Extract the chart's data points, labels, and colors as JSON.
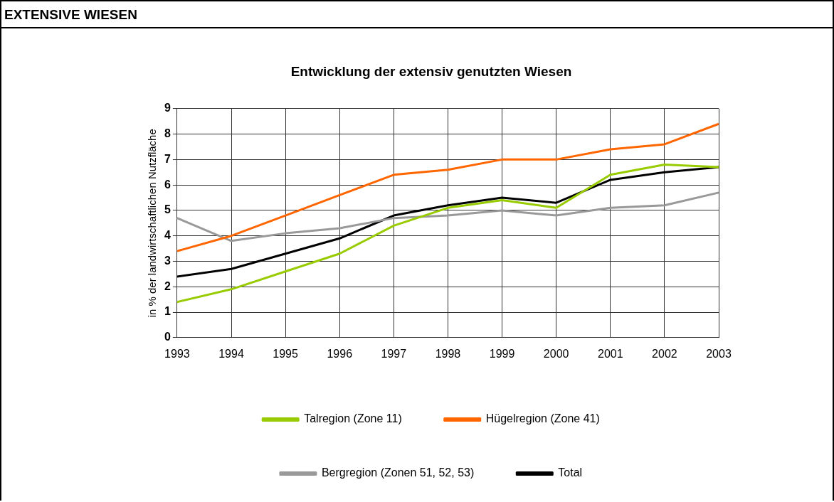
{
  "chart_data": {
    "type": "line",
    "title": "Entwicklung der extensiv genutzten Wiesen",
    "ylabel": "in % der landwirtschaftlichen Nutzfläche",
    "annotations": [
      "EXTENSIVE WIESEN"
    ],
    "categories": [
      "1993",
      "1994",
      "1995",
      "1996",
      "1997",
      "1998",
      "1999",
      "2000",
      "2001",
      "2002",
      "2003"
    ],
    "series": [
      {
        "name": "Talregion (Zone 11)",
        "color": "#99cc00",
        "values": [
          1.4,
          1.9,
          2.6,
          3.3,
          4.4,
          5.1,
          5.4,
          5.1,
          6.4,
          6.8,
          6.7
        ]
      },
      {
        "name": "Hügelregion (Zone 41)",
        "color": "#ff6600",
        "values": [
          3.4,
          4.0,
          4.8,
          5.6,
          6.4,
          6.6,
          7.0,
          7.0,
          7.4,
          7.6,
          8.4
        ]
      },
      {
        "name": "Bergregion (Zonen 51, 52, 53)",
        "color": "#999999",
        "values": [
          4.7,
          3.8,
          4.1,
          4.3,
          4.7,
          4.8,
          5.0,
          4.8,
          5.1,
          5.2,
          5.7
        ]
      },
      {
        "name": "Total",
        "color": "#000000",
        "values": [
          2.4,
          2.7,
          3.3,
          3.9,
          4.8,
          5.2,
          5.5,
          5.3,
          6.2,
          6.5,
          6.7
        ]
      }
    ],
    "ylim": [
      0,
      9
    ],
    "yticks": [
      0,
      1,
      2,
      3,
      4,
      5,
      6,
      7,
      8,
      9
    ],
    "grid": true,
    "legend": "bottom",
    "marker": "none",
    "line_style": "solid"
  }
}
